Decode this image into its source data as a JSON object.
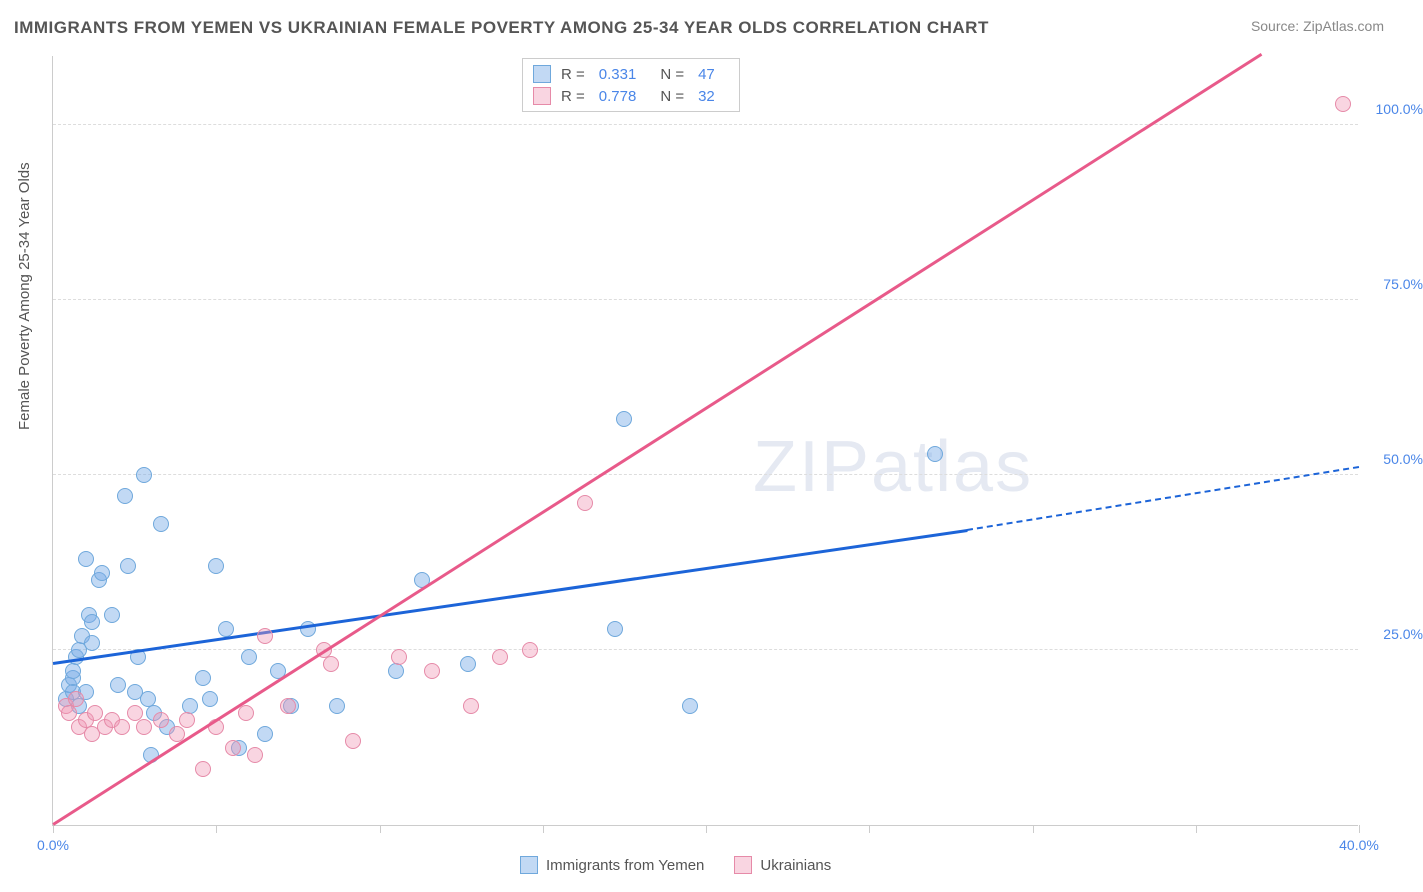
{
  "title": "IMMIGRANTS FROM YEMEN VS UKRAINIAN FEMALE POVERTY AMONG 25-34 YEAR OLDS CORRELATION CHART",
  "source_label": "Source:",
  "source_value": "ZipAtlas.com",
  "ylabel": "Female Poverty Among 25-34 Year Olds",
  "watermark_a": "ZIP",
  "watermark_b": "atlas",
  "chart": {
    "type": "scatter",
    "xlim": [
      0,
      40
    ],
    "ylim": [
      0,
      110
    ],
    "x_ticks": [
      0,
      5,
      10,
      15,
      20,
      25,
      30,
      35,
      40
    ],
    "x_tick_labels": {
      "0": "0.0%",
      "40": "40.0%"
    },
    "y_gridlines": [
      25,
      50,
      75,
      100
    ],
    "y_tick_labels": {
      "25": "25.0%",
      "50": "50.0%",
      "75": "75.0%",
      "100": "100.0%"
    },
    "background_color": "#ffffff",
    "grid_color": "#dddddd",
    "axis_color": "#cccccc",
    "tick_label_color": "#4a86e8"
  },
  "series": [
    {
      "name": "Immigrants from Yemen",
      "color_fill": "rgba(120,170,230,0.45)",
      "color_stroke": "#6fa8dc",
      "trend_color": "#1c64d8",
      "R": "0.331",
      "N": "47",
      "trend": {
        "x1": 0,
        "y1": 23,
        "x2": 28,
        "y2": 42,
        "dash_to_x": 40,
        "dash_to_y": 51
      },
      "points": [
        [
          0.4,
          18
        ],
        [
          0.5,
          20
        ],
        [
          0.6,
          21
        ],
        [
          0.6,
          19
        ],
        [
          0.7,
          24
        ],
        [
          0.8,
          25
        ],
        [
          0.8,
          17
        ],
        [
          0.9,
          27
        ],
        [
          1.0,
          19
        ],
        [
          1.0,
          38
        ],
        [
          1.1,
          30
        ],
        [
          1.2,
          26
        ],
        [
          1.2,
          29
        ],
        [
          1.4,
          35
        ],
        [
          1.5,
          36
        ],
        [
          1.8,
          30
        ],
        [
          2.0,
          20
        ],
        [
          2.2,
          47
        ],
        [
          2.3,
          37
        ],
        [
          2.5,
          19
        ],
        [
          2.6,
          24
        ],
        [
          2.8,
          50
        ],
        [
          2.9,
          18
        ],
        [
          3.0,
          10
        ],
        [
          3.1,
          16
        ],
        [
          3.3,
          43
        ],
        [
          3.5,
          14
        ],
        [
          4.2,
          17
        ],
        [
          4.6,
          21
        ],
        [
          4.8,
          18
        ],
        [
          5.0,
          37
        ],
        [
          5.3,
          28
        ],
        [
          5.7,
          11
        ],
        [
          6.0,
          24
        ],
        [
          6.5,
          13
        ],
        [
          6.9,
          22
        ],
        [
          7.3,
          17
        ],
        [
          7.8,
          28
        ],
        [
          8.7,
          17
        ],
        [
          10.5,
          22
        ],
        [
          11.3,
          35
        ],
        [
          12.7,
          23
        ],
        [
          17.2,
          28
        ],
        [
          17.5,
          58
        ],
        [
          19.5,
          17
        ],
        [
          27.0,
          53
        ],
        [
          0.6,
          22
        ]
      ]
    },
    {
      "name": "Ukrainians",
      "color_fill": "rgba(240,150,180,0.4)",
      "color_stroke": "#e68aa8",
      "trend_color": "#e85a8a",
      "R": "0.778",
      "N": "32",
      "trend": {
        "x1": 0,
        "y1": 0,
        "x2": 37,
        "y2": 110
      },
      "points": [
        [
          0.4,
          17
        ],
        [
          0.5,
          16
        ],
        [
          0.7,
          18
        ],
        [
          0.8,
          14
        ],
        [
          1.0,
          15
        ],
        [
          1.2,
          13
        ],
        [
          1.3,
          16
        ],
        [
          1.6,
          14
        ],
        [
          1.8,
          15
        ],
        [
          2.1,
          14
        ],
        [
          2.5,
          16
        ],
        [
          2.8,
          14
        ],
        [
          3.3,
          15
        ],
        [
          3.8,
          13
        ],
        [
          4.1,
          15
        ],
        [
          4.6,
          8
        ],
        [
          5.0,
          14
        ],
        [
          5.5,
          11
        ],
        [
          5.9,
          16
        ],
        [
          6.2,
          10
        ],
        [
          6.5,
          27
        ],
        [
          7.2,
          17
        ],
        [
          8.3,
          25
        ],
        [
          8.5,
          23
        ],
        [
          9.2,
          12
        ],
        [
          10.6,
          24
        ],
        [
          11.6,
          22
        ],
        [
          12.8,
          17
        ],
        [
          13.7,
          24
        ],
        [
          14.6,
          25
        ],
        [
          16.3,
          46
        ],
        [
          39.5,
          103
        ]
      ]
    }
  ],
  "legend_top": {
    "R_label": "R  =",
    "N_label": "N  ="
  }
}
